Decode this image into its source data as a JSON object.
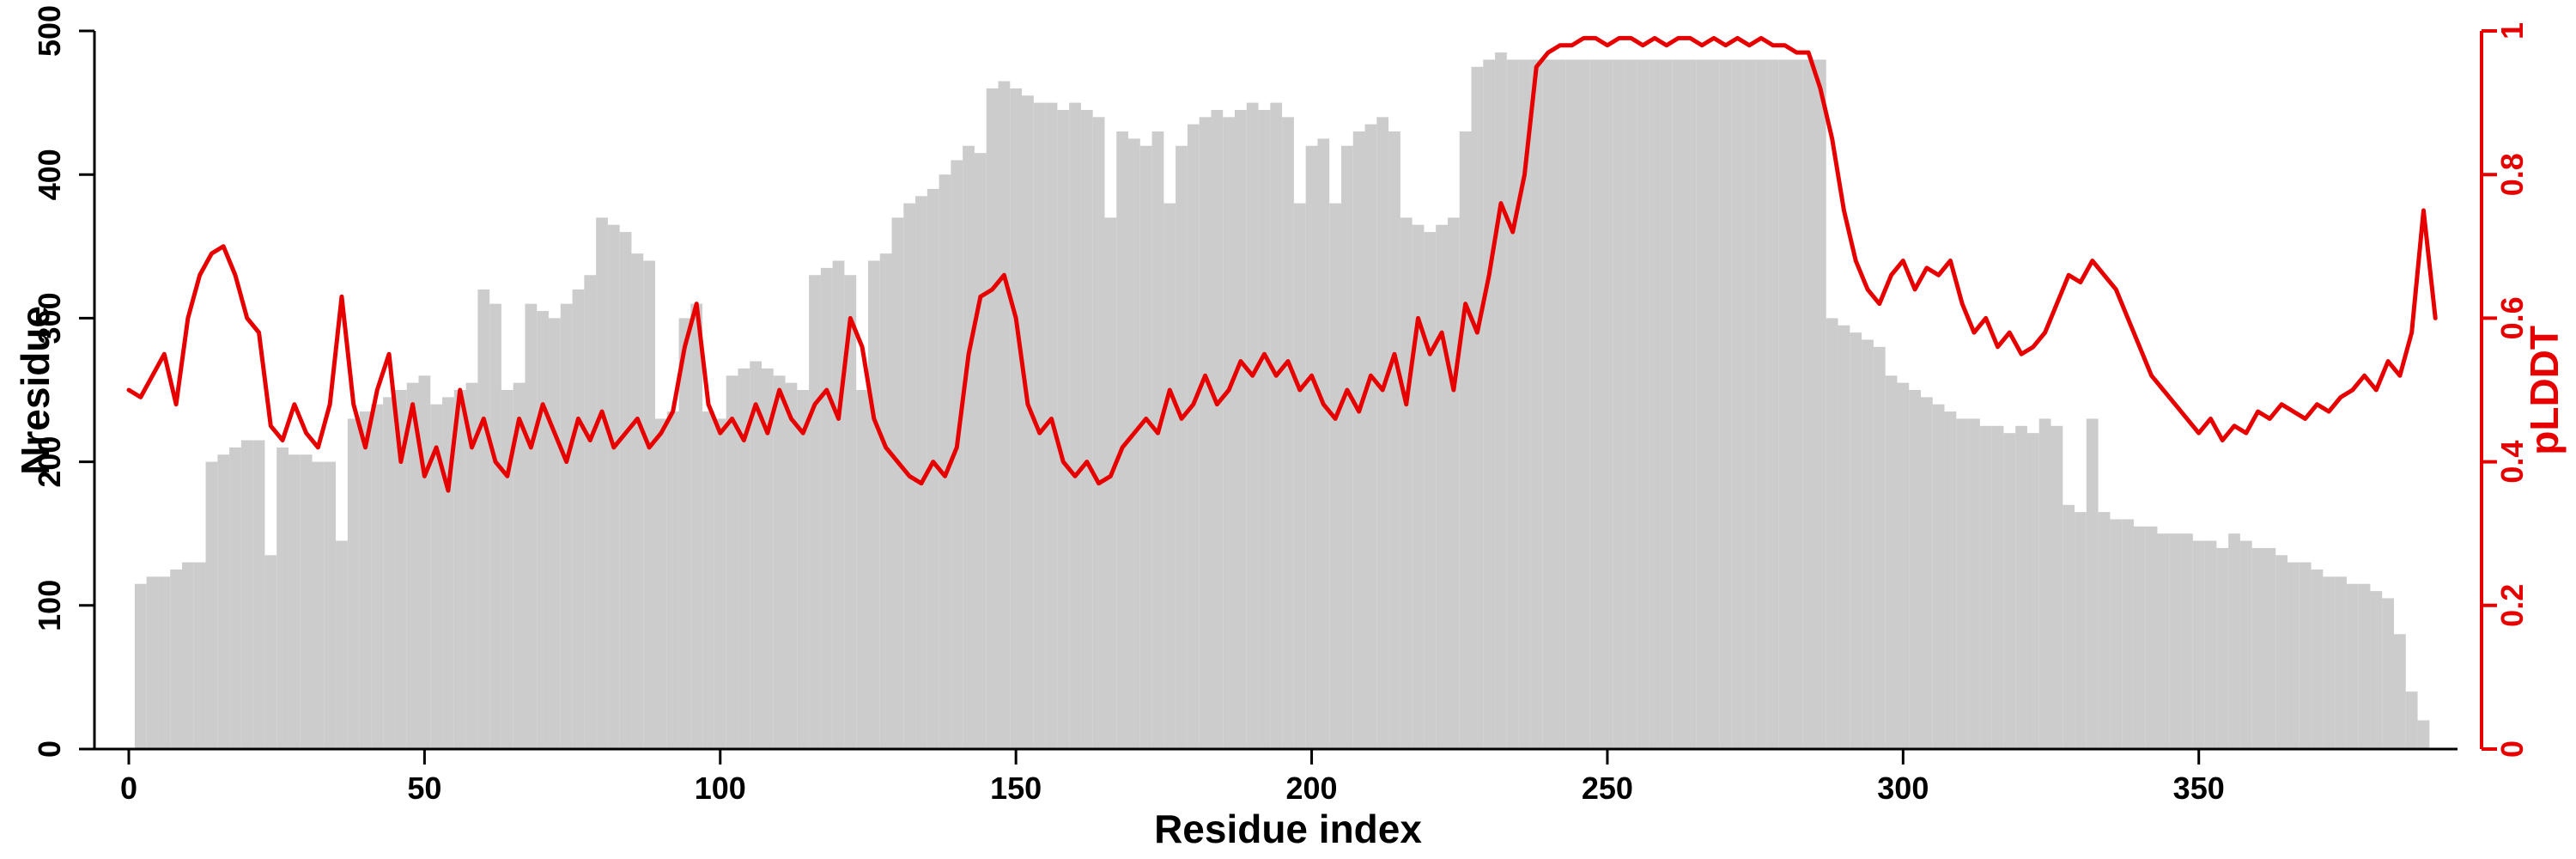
{
  "colors": {
    "bar": "#cccccc",
    "line": "#e60000",
    "axis_left": "#000000",
    "axis_right": "#e60000",
    "background": "#ffffff"
  },
  "chart_data": {
    "type": "bar",
    "subtype": "bar-left-axis with line-right-axis overlay",
    "title": "",
    "xlabel": "Residue index",
    "ylabel": "Nresidue",
    "ylabel2": "pLDDT",
    "xlim": [
      0,
      392
    ],
    "ylim_left": [
      0,
      500
    ],
    "ylim_right": [
      0,
      1
    ],
    "x_ticks": [
      0,
      50,
      100,
      150,
      200,
      250,
      300,
      350
    ],
    "left_ticks": [
      0,
      100,
      200,
      300,
      400,
      500
    ],
    "right_ticks": [
      0,
      0.2,
      0.4,
      0.6,
      0.8,
      1
    ],
    "grid": false,
    "legend": "none",
    "x_start": 0,
    "x_step": 2,
    "series": [
      {
        "name": "Nresidue",
        "type": "bar",
        "axis": "left",
        "color": "#cccccc",
        "values": [
          0,
          115,
          120,
          120,
          125,
          130,
          130,
          200,
          205,
          210,
          215,
          215,
          135,
          210,
          205,
          205,
          200,
          200,
          145,
          230,
          235,
          240,
          245,
          250,
          255,
          260,
          240,
          245,
          250,
          255,
          320,
          310,
          250,
          255,
          310,
          305,
          300,
          310,
          320,
          330,
          370,
          365,
          360,
          345,
          340,
          230,
          235,
          300,
          310,
          235,
          230,
          260,
          265,
          270,
          265,
          260,
          255,
          250,
          330,
          335,
          340,
          330,
          250,
          340,
          345,
          370,
          380,
          385,
          390,
          400,
          410,
          420,
          415,
          460,
          465,
          460,
          455,
          450,
          450,
          445,
          450,
          445,
          440,
          370,
          430,
          425,
          420,
          430,
          380,
          420,
          435,
          440,
          445,
          440,
          445,
          450,
          445,
          450,
          440,
          380,
          420,
          425,
          380,
          420,
          430,
          435,
          440,
          430,
          370,
          365,
          360,
          365,
          370,
          430,
          475,
          480,
          485,
          480,
          480,
          480,
          480,
          480,
          480,
          480,
          480,
          480,
          480,
          480,
          480,
          480,
          480,
          480,
          480,
          480,
          480,
          480,
          480,
          480,
          480,
          480,
          480,
          480,
          480,
          480,
          300,
          295,
          290,
          285,
          280,
          260,
          255,
          250,
          245,
          240,
          235,
          230,
          230,
          225,
          225,
          220,
          225,
          220,
          230,
          225,
          170,
          165,
          230,
          165,
          160,
          160,
          155,
          155,
          150,
          150,
          150,
          145,
          145,
          140,
          150,
          145,
          140,
          140,
          135,
          130,
          130,
          125,
          120,
          120,
          115,
          115,
          110,
          105,
          80,
          40,
          20
        ]
      },
      {
        "name": "pLDDT",
        "type": "line",
        "axis": "right",
        "color": "#e60000",
        "values": [
          0.5,
          0.49,
          0.52,
          0.55,
          0.48,
          0.6,
          0.66,
          0.69,
          0.7,
          0.66,
          0.6,
          0.58,
          0.45,
          0.43,
          0.48,
          0.44,
          0.42,
          0.48,
          0.63,
          0.48,
          0.42,
          0.5,
          0.55,
          0.4,
          0.48,
          0.38,
          0.42,
          0.36,
          0.5,
          0.42,
          0.46,
          0.4,
          0.38,
          0.46,
          0.42,
          0.48,
          0.44,
          0.4,
          0.46,
          0.43,
          0.47,
          0.42,
          0.44,
          0.46,
          0.42,
          0.44,
          0.47,
          0.56,
          0.62,
          0.48,
          0.44,
          0.46,
          0.43,
          0.48,
          0.44,
          0.5,
          0.46,
          0.44,
          0.48,
          0.5,
          0.46,
          0.6,
          0.56,
          0.46,
          0.42,
          0.4,
          0.38,
          0.37,
          0.4,
          0.38,
          0.42,
          0.55,
          0.63,
          0.64,
          0.66,
          0.6,
          0.48,
          0.44,
          0.46,
          0.4,
          0.38,
          0.4,
          0.37,
          0.38,
          0.42,
          0.44,
          0.46,
          0.44,
          0.5,
          0.46,
          0.48,
          0.52,
          0.48,
          0.5,
          0.54,
          0.52,
          0.55,
          0.52,
          0.54,
          0.5,
          0.52,
          0.48,
          0.46,
          0.5,
          0.47,
          0.52,
          0.5,
          0.55,
          0.48,
          0.6,
          0.55,
          0.58,
          0.5,
          0.62,
          0.58,
          0.66,
          0.76,
          0.72,
          0.8,
          0.95,
          0.97,
          0.98,
          0.98,
          0.99,
          0.99,
          0.98,
          0.99,
          0.99,
          0.98,
          0.99,
          0.98,
          0.99,
          0.99,
          0.98,
          0.99,
          0.98,
          0.99,
          0.98,
          0.99,
          0.98,
          0.98,
          0.97,
          0.97,
          0.92,
          0.85,
          0.75,
          0.68,
          0.64,
          0.62,
          0.66,
          0.68,
          0.64,
          0.67,
          0.66,
          0.68,
          0.62,
          0.58,
          0.6,
          0.56,
          0.58,
          0.55,
          0.56,
          0.58,
          0.62,
          0.66,
          0.65,
          0.68,
          0.66,
          0.64,
          0.6,
          0.56,
          0.52,
          0.5,
          0.48,
          0.46,
          0.44,
          0.46,
          0.43,
          0.45,
          0.44,
          0.47,
          0.46,
          0.48,
          0.47,
          0.46,
          0.48,
          0.47,
          0.49,
          0.5,
          0.52,
          0.5,
          0.54,
          0.52,
          0.58,
          0.75,
          0.6
        ]
      }
    ]
  }
}
